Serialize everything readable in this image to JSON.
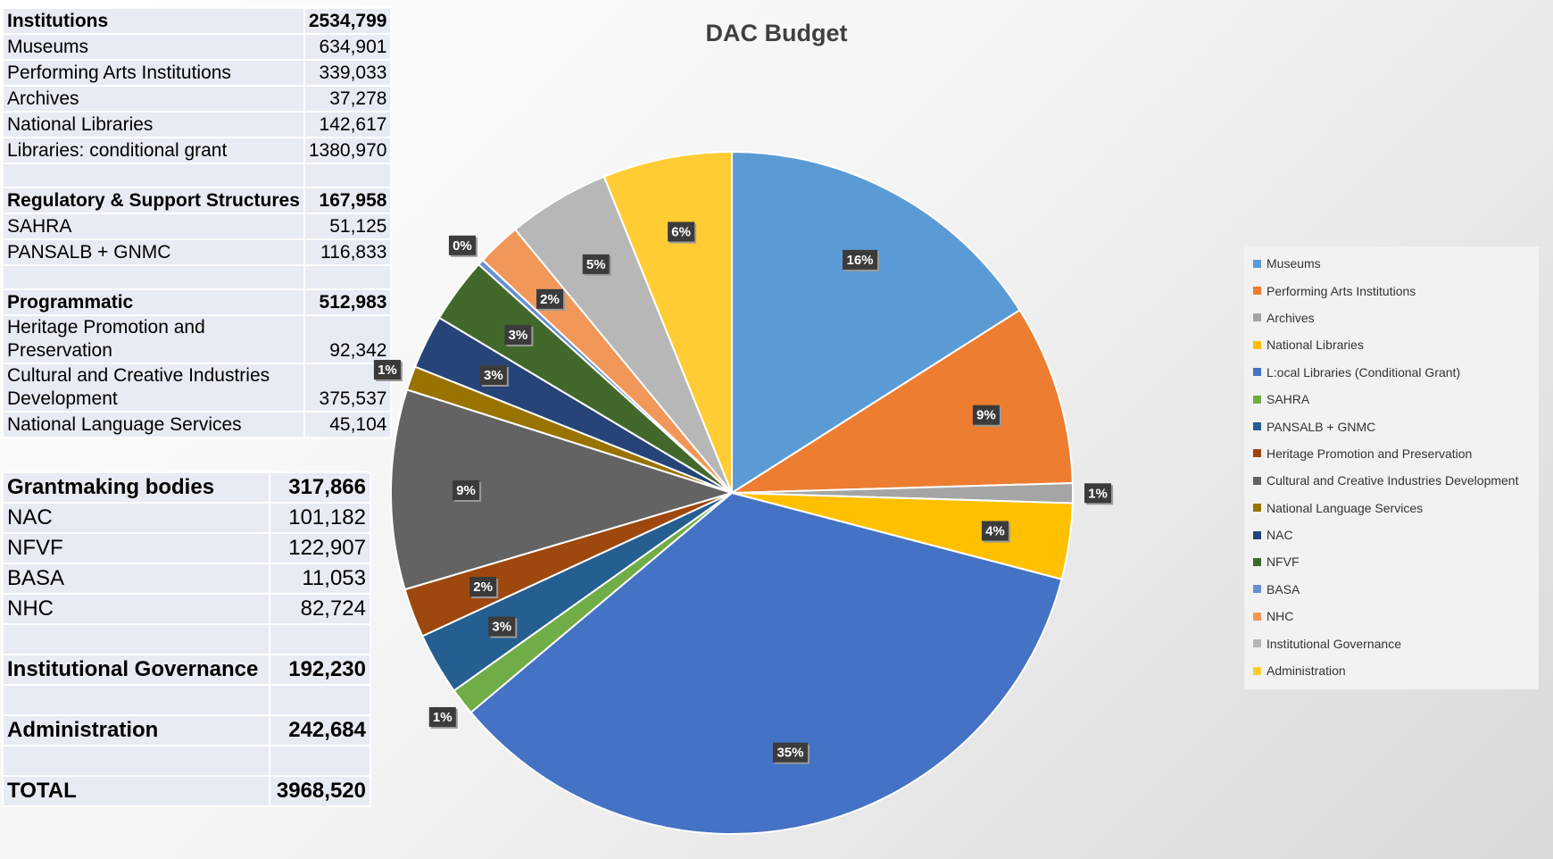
{
  "table1": {
    "rows": [
      {
        "label": "Institutions",
        "value": "2534,799",
        "bold": true
      },
      {
        "label": "Museums",
        "value": "634,901"
      },
      {
        "label": "Performing Arts Institutions",
        "value": "339,033"
      },
      {
        "label": "Archives",
        "value": "37,278"
      },
      {
        "label": "National Libraries",
        "value": "142,617"
      },
      {
        "label": "Libraries: conditional grant",
        "value": "1380,970"
      },
      {
        "label": "",
        "value": "",
        "blank": true
      },
      {
        "label": "Regulatory & Support Structures",
        "value": "167,958",
        "bold": true
      },
      {
        "label": "SAHRA",
        "value": "51,125"
      },
      {
        "label": "PANSALB + GNMC",
        "value": "116,833"
      },
      {
        "label": "",
        "value": "",
        "blank": true
      },
      {
        "label": "Programmatic",
        "value": "512,983",
        "bold": true
      },
      {
        "label": "Heritage Promotion and Preservation",
        "value": "92,342",
        "tall": true
      },
      {
        "label": "Cultural and Creative Industries Development",
        "value": "375,537",
        "tall": true
      },
      {
        "label": "National Language Services",
        "value": "45,104"
      }
    ]
  },
  "table2": {
    "rows": [
      {
        "label": "Grantmaking bodies",
        "value": "317,866",
        "bold": true
      },
      {
        "label": "NAC",
        "value": "101,182"
      },
      {
        "label": "NFVF",
        "value": "122,907"
      },
      {
        "label": "BASA",
        "value": "11,053"
      },
      {
        "label": "NHC",
        "value": "82,724"
      },
      {
        "label": "",
        "value": "",
        "blank": true
      },
      {
        "label": "Institutional Governance",
        "value": "192,230",
        "bold": true
      },
      {
        "label": "",
        "value": "",
        "blank": true
      },
      {
        "label": "Administration",
        "value": "242,684",
        "bold": true
      },
      {
        "label": "",
        "value": "",
        "blank": true
      },
      {
        "label": "TOTAL",
        "value": "3968,520",
        "bold": true
      }
    ]
  },
  "chart_data": {
    "type": "pie",
    "title": "DAC Budget",
    "legend_position": "right",
    "categories": [
      "Museums",
      "Performing Arts Institutions",
      "Archives",
      "National Libraries",
      "L:ocal Libraries (Conditional Grant)",
      "SAHRA",
      "PANSALB + GNMC",
      "Heritage Promotion and Preservation",
      "Cultural and Creative Industries Development",
      "National Language Services",
      "NAC",
      "NFVF",
      "BASA",
      "NHC",
      "Institutional Governance",
      "Administration"
    ],
    "values": [
      634901,
      339033,
      37278,
      142617,
      1380970,
      51125,
      116833,
      92342,
      375537,
      45104,
      101182,
      122907,
      11053,
      82724,
      192230,
      242684
    ],
    "data_labels": [
      "16%",
      "9%",
      "1%",
      "4%",
      "35%",
      "1%",
      "3%",
      "2%",
      "9%",
      "1%",
      "3%",
      "3%",
      "0%",
      "2%",
      "5%",
      "6%"
    ],
    "colors": [
      "#5b9bd5",
      "#ed7d31",
      "#a5a5a5",
      "#ffc000",
      "#4472c4",
      "#70ad47",
      "#255e91",
      "#9e480e",
      "#636363",
      "#997300",
      "#264478",
      "#43682b",
      "#698ed0",
      "#f1975a",
      "#b7b7b7",
      "#ffcd33"
    ]
  }
}
